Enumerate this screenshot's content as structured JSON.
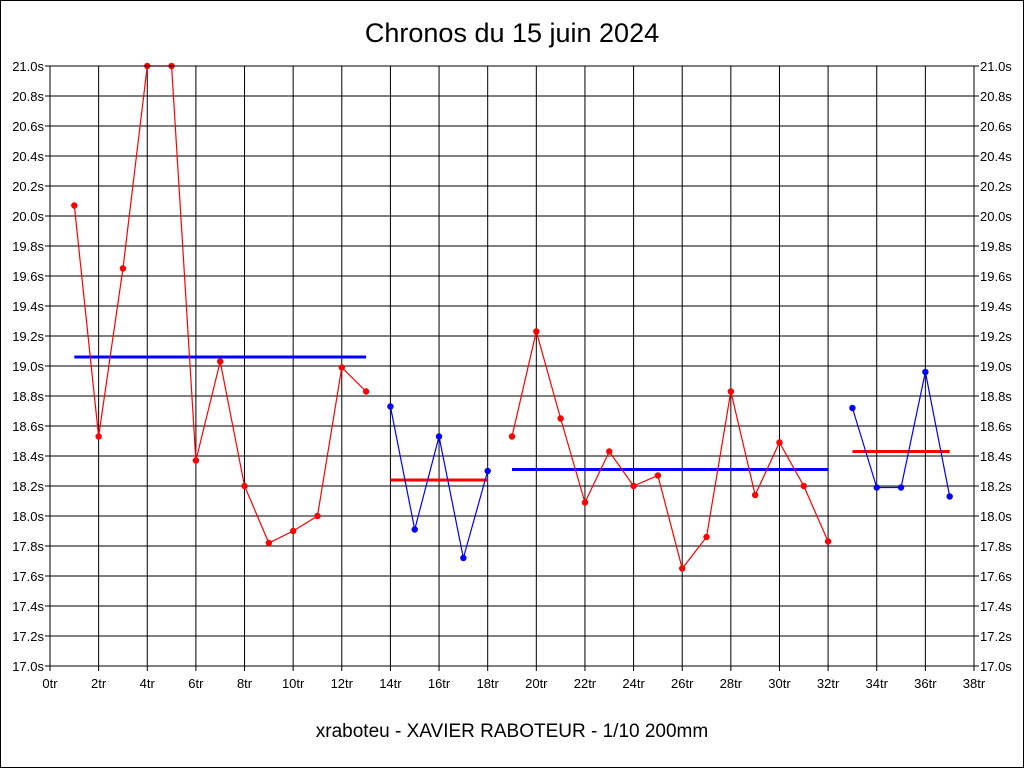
{
  "chart_data": {
    "type": "line",
    "title": "Chronos du 15 juin 2024",
    "caption": "xraboteu - XAVIER RABOTEUR - 1/10 200mm",
    "x_unit_suffix": "tr",
    "y_unit_suffix": "s",
    "xlim": [
      0,
      38
    ],
    "ylim": [
      17.0,
      21.0
    ],
    "x_tick_step": 2,
    "y_tick_step": 0.2,
    "grid": true,
    "colors": {
      "red": "#ff0000",
      "blue": "#0000ff",
      "grid": "#000000"
    },
    "series": [
      {
        "color": "#ff0000",
        "x": [
          1,
          2,
          3,
          4,
          5,
          6,
          7,
          8,
          9,
          10,
          11,
          12,
          13
        ],
        "y": [
          20.07,
          18.53,
          19.65,
          21.0,
          21.0,
          18.37,
          19.03,
          18.2,
          17.82,
          17.9,
          18.0,
          18.99,
          18.83
        ]
      },
      {
        "color": "#0000ff",
        "x": [
          14,
          15,
          16,
          17,
          18
        ],
        "y": [
          18.73,
          17.91,
          18.53,
          17.72,
          18.3
        ]
      },
      {
        "color": "#ff0000",
        "x": [
          19,
          20,
          21,
          22,
          23,
          24,
          25,
          26,
          27,
          28,
          29,
          30,
          31,
          32
        ],
        "y": [
          18.53,
          19.23,
          18.65,
          18.09,
          18.43,
          18.2,
          18.27,
          17.65,
          17.86,
          18.83,
          18.14,
          18.49,
          18.2,
          17.83
        ]
      },
      {
        "color": "#0000ff",
        "x": [
          33,
          34,
          35,
          36,
          37
        ],
        "y": [
          18.72,
          18.19,
          18.19,
          18.96,
          18.13
        ]
      }
    ],
    "averages": [
      {
        "color": "#0000ff",
        "x_range": [
          1,
          13
        ],
        "y": 19.06
      },
      {
        "color": "#ff0000",
        "x_range": [
          14,
          18
        ],
        "y": 18.24
      },
      {
        "color": "#0000ff",
        "x_range": [
          19,
          32
        ],
        "y": 18.31
      },
      {
        "color": "#ff0000",
        "x_range": [
          33,
          37
        ],
        "y": 18.43
      }
    ]
  }
}
